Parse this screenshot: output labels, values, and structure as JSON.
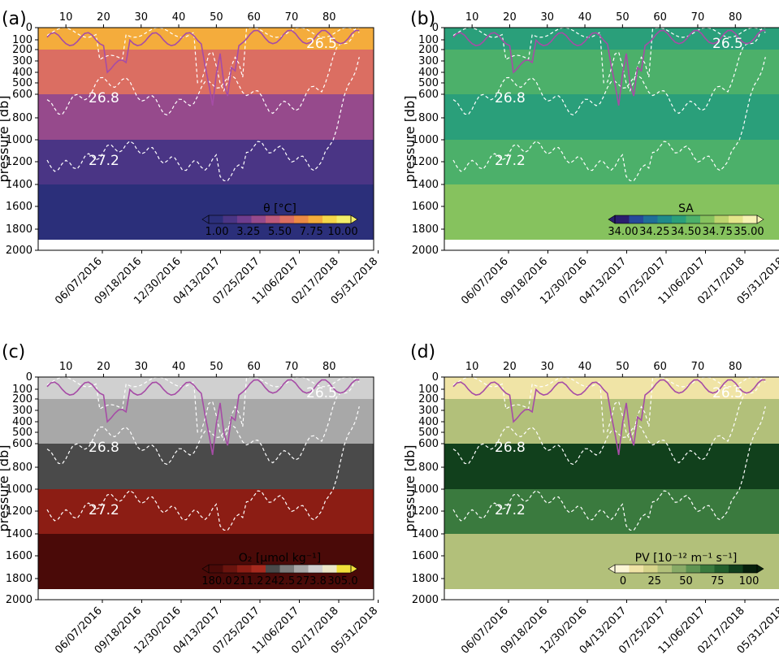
{
  "chart_data": [
    {
      "panel": "(a)",
      "type": "heatmap",
      "ylabel": "pressure [db]",
      "ylim": [
        2000,
        0
      ],
      "y_ticks": [
        0,
        100,
        200,
        300,
        400,
        500,
        600,
        800,
        1000,
        1200,
        1400,
        1600,
        1800,
        2000
      ],
      "top_ticks": [
        10,
        20,
        30,
        40,
        50,
        60,
        70,
        80
      ],
      "x_dates": [
        "06/07/2016",
        "09/18/2016",
        "12/30/2016",
        "04/13/2017",
        "07/25/2017",
        "11/06/2017",
        "02/17/2018",
        "05/31/2018"
      ],
      "isopycnal_labels": [
        "26.5",
        "26.8",
        "27.2"
      ],
      "colorbar": {
        "label": "θ [°C]",
        "ticks": [
          "1.00",
          "3.25",
          "5.50",
          "7.75",
          "10.00"
        ],
        "colors": [
          "#2b2f7a",
          "#4a3585",
          "#6e3d8e",
          "#964a8c",
          "#bd5a7c",
          "#db6e62",
          "#ec8a45",
          "#f4ac3c",
          "#f5d64a",
          "#f3ee6a"
        ]
      }
    },
    {
      "panel": "(b)",
      "type": "heatmap",
      "ylabel": "pressure [db]",
      "ylim": [
        2000,
        0
      ],
      "y_ticks": [
        0,
        100,
        200,
        300,
        400,
        500,
        600,
        800,
        1000,
        1200,
        1400,
        1600,
        1800,
        2000
      ],
      "top_ticks": [
        10,
        20,
        30,
        40,
        50,
        60,
        70,
        80
      ],
      "x_dates": [
        "06/07/2016",
        "09/18/2016",
        "12/30/2016",
        "04/13/2017",
        "07/25/2017",
        "11/06/2017",
        "02/17/2018",
        "05/31/2018"
      ],
      "isopycnal_labels": [
        "26.5",
        "26.8",
        "27.2"
      ],
      "colorbar": {
        "label": "SA",
        "ticks": [
          "34.00",
          "34.25",
          "34.50",
          "34.75",
          "35.00"
        ],
        "colors": [
          "#2a1e6e",
          "#254a9a",
          "#1f6e98",
          "#1f8a8a",
          "#2a9f7a",
          "#4cb06a",
          "#86c25e",
          "#bdd46e",
          "#e4e68a",
          "#f6f3b4"
        ]
      }
    },
    {
      "panel": "(c)",
      "type": "heatmap",
      "ylabel": "pressure [db]",
      "ylim": [
        2000,
        0
      ],
      "y_ticks": [
        0,
        100,
        200,
        300,
        400,
        500,
        600,
        800,
        1000,
        1200,
        1400,
        1600,
        1800,
        2000
      ],
      "top_ticks": [
        10,
        20,
        30,
        40,
        50,
        60,
        70,
        80
      ],
      "x_dates": [
        "06/07/2016",
        "09/18/2016",
        "12/30/2016",
        "04/13/2017",
        "07/25/2017",
        "11/06/2017",
        "02/17/2018",
        "05/31/2018"
      ],
      "isopycnal_labels": [
        "26.5",
        "26.8",
        "27.2"
      ],
      "colorbar": {
        "label": "O₂ [µmol kg⁻¹]",
        "ticks": [
          "180.0",
          "211.2",
          "242.5",
          "273.8",
          "305.0"
        ],
        "colors": [
          "#4a0a08",
          "#6a140e",
          "#8c1d14",
          "#a82a1e",
          "#4a4a4a",
          "#7c7c7c",
          "#a8a8a8",
          "#d0d0d0",
          "#ece7c8",
          "#f2e03a"
        ]
      }
    },
    {
      "panel": "(d)",
      "type": "heatmap",
      "ylabel": "pressure [db]",
      "ylim": [
        2000,
        0
      ],
      "y_ticks": [
        0,
        100,
        200,
        300,
        400,
        500,
        600,
        800,
        1000,
        1200,
        1400,
        1600,
        1800,
        2000
      ],
      "top_ticks": [
        10,
        20,
        30,
        40,
        50,
        60,
        70,
        80
      ],
      "x_dates": [
        "06/07/2016",
        "09/18/2016",
        "12/30/2016",
        "04/13/2017",
        "07/25/2017",
        "11/06/2017",
        "02/17/2018",
        "05/31/2018"
      ],
      "isopycnal_labels": [
        "26.5",
        "26.8",
        "27.2"
      ],
      "colorbar": {
        "label": "PV [10⁻¹² m⁻¹ s⁻¹]",
        "ticks": [
          "0",
          "25",
          "50",
          "75",
          "100"
        ],
        "colors": [
          "#fbf6d6",
          "#f0e4a6",
          "#d6d48a",
          "#b2c07a",
          "#88aa66",
          "#5e9352",
          "#3a7a3e",
          "#215e2c",
          "#11401c",
          "#07200c"
        ]
      }
    }
  ]
}
